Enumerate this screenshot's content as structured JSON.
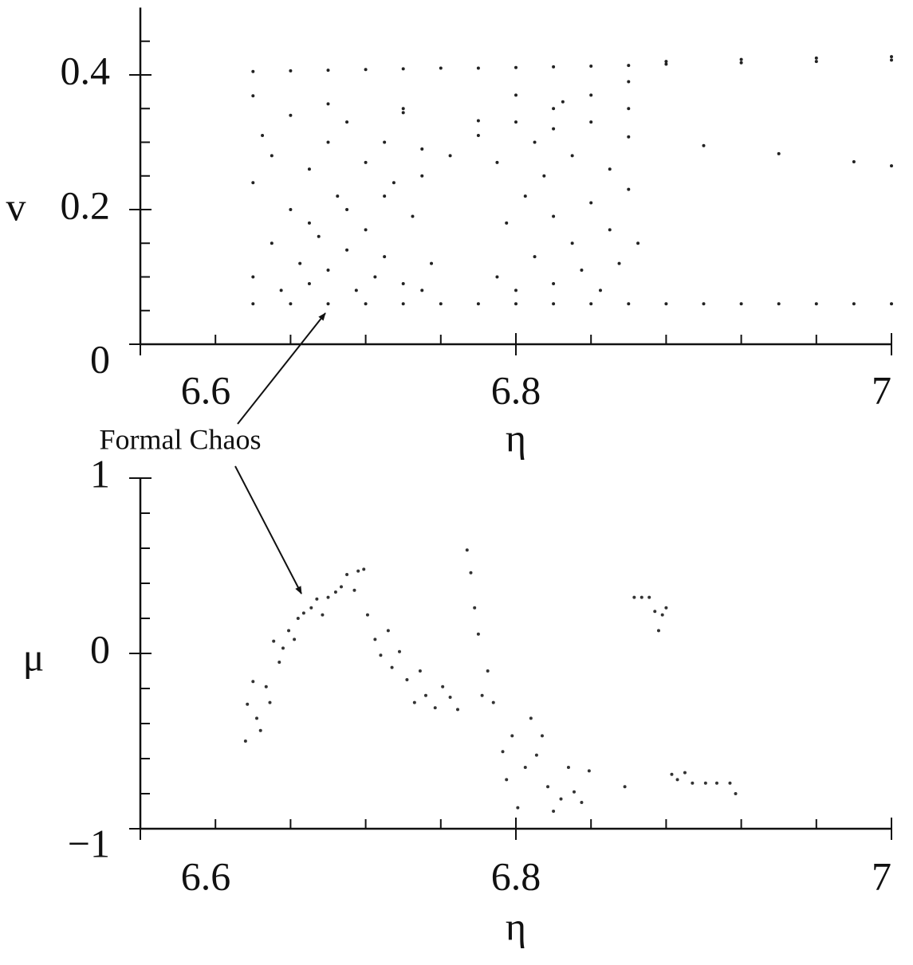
{
  "chart_data": [
    {
      "type": "scatter",
      "y_label": "v",
      "x_label": "η",
      "annotation": "Formal Chaos",
      "color": "#222222",
      "xlim": [
        6.6,
        7
      ],
      "xticks": [
        6.6,
        6.8,
        7
      ],
      "xminorticks": [
        6.64,
        6.68,
        6.72,
        6.76,
        6.84,
        6.88,
        6.92,
        6.96
      ],
      "ylim": [
        0,
        0.5
      ],
      "yticks": [
        0,
        0.2,
        0.4
      ],
      "yminorticks": [
        0.05,
        0.1,
        0.15,
        0.25,
        0.3,
        0.35,
        0.45
      ],
      "x": [
        6.66,
        6.68,
        6.7,
        6.72,
        6.74,
        6.76,
        6.78,
        6.8,
        6.82,
        6.84,
        6.86,
        6.88,
        6.9,
        6.92,
        6.94,
        6.96,
        6.98,
        7,
        6.66,
        6.68,
        6.7,
        6.72,
        6.74,
        6.76,
        6.78,
        6.8,
        6.82,
        6.84,
        6.86,
        6.88,
        6.92,
        6.96,
        7,
        6.88,
        6.92,
        6.96,
        7,
        6.66,
        6.7,
        6.74,
        6.78,
        6.82,
        6.86,
        6.9,
        6.94,
        6.98,
        7,
        6.69,
        6.71,
        6.73,
        6.75,
        6.765,
        6.78,
        6.8,
        6.82,
        6.84,
        6.86,
        6.66,
        6.66,
        6.665,
        6.67,
        6.67,
        6.675,
        6.68,
        6.68,
        6.685,
        6.69,
        6.69,
        6.695,
        6.7,
        6.7,
        6.705,
        6.71,
        6.71,
        6.715,
        6.72,
        6.72,
        6.725,
        6.73,
        6.73,
        6.735,
        6.74,
        6.74,
        6.745,
        6.75,
        6.75,
        6.755,
        6.79,
        6.79,
        6.795,
        6.8,
        6.8,
        6.805,
        6.81,
        6.81,
        6.815,
        6.82,
        6.82,
        6.825,
        6.83,
        6.83,
        6.835,
        6.84,
        6.84,
        6.845,
        6.85,
        6.85,
        6.855,
        6.86,
        6.86,
        6.865
      ],
      "values": [
        0.06,
        0.06,
        0.06,
        0.06,
        0.06,
        0.06,
        0.06,
        0.06,
        0.06,
        0.06,
        0.06,
        0.06,
        0.06,
        0.06,
        0.06,
        0.06,
        0.06,
        0.06,
        0.405,
        0.406,
        0.407,
        0.408,
        0.409,
        0.41,
        0.41,
        0.411,
        0.412,
        0.413,
        0.414,
        0.416,
        0.418,
        0.42,
        0.422,
        0.42,
        0.423,
        0.425,
        0.427,
        0.369,
        0.357,
        0.344,
        0.332,
        0.32,
        0.308,
        0.295,
        0.283,
        0.271,
        0.265,
        0.18,
        0.2,
        0.22,
        0.25,
        0.28,
        0.31,
        0.33,
        0.35,
        0.37,
        0.39,
        0.1,
        0.24,
        0.31,
        0.15,
        0.28,
        0.08,
        0.2,
        0.34,
        0.12,
        0.26,
        0.09,
        0.16,
        0.3,
        0.11,
        0.22,
        0.14,
        0.33,
        0.08,
        0.27,
        0.17,
        0.1,
        0.3,
        0.13,
        0.24,
        0.09,
        0.35,
        0.19,
        0.08,
        0.29,
        0.12,
        0.1,
        0.27,
        0.18,
        0.37,
        0.08,
        0.22,
        0.13,
        0.3,
        0.25,
        0.09,
        0.19,
        0.36,
        0.15,
        0.28,
        0.11,
        0.21,
        0.33,
        0.08,
        0.17,
        0.26,
        0.12,
        0.23,
        0.35,
        0.15
      ]
    },
    {
      "type": "scatter",
      "y_label": "μ",
      "x_label": "η",
      "color": "#333333",
      "xlim": [
        6.6,
        7
      ],
      "xticks": [
        6.6,
        6.8,
        7
      ],
      "xminorticks": [
        6.64,
        6.68,
        6.72,
        6.76,
        6.84,
        6.88,
        6.92,
        6.96
      ],
      "ylim": [
        -1,
        1
      ],
      "yticks": [
        {
          "value": -1,
          "label": "−1"
        },
        0,
        1
      ],
      "yminorticks": [
        -0.8,
        -0.6,
        -0.4,
        -0.2,
        0.2,
        0.4,
        0.6,
        0.8
      ],
      "x": [
        6.656,
        6.657,
        6.66,
        6.662,
        6.664,
        6.667,
        6.669,
        6.671,
        6.674,
        6.676,
        6.679,
        6.682,
        6.684,
        6.687,
        6.691,
        6.694,
        6.697,
        6.7,
        6.704,
        6.707,
        6.71,
        6.714,
        6.716,
        6.719,
        6.721,
        6.725,
        6.728,
        6.732,
        6.734,
        6.738,
        6.742,
        6.746,
        6.749,
        6.752,
        6.757,
        6.761,
        6.765,
        6.769,
        6.774,
        6.776,
        6.778,
        6.78,
        6.782,
        6.785,
        6.788,
        6.793,
        6.795,
        6.798,
        6.801,
        6.805,
        6.808,
        6.811,
        6.814,
        6.817,
        6.82,
        6.824,
        6.828,
        6.831,
        6.835,
        6.839,
        6.858,
        6.863,
        6.867,
        6.871,
        6.874,
        6.876,
        6.878,
        6.88,
        6.883,
        6.886,
        6.89,
        6.894,
        6.901,
        6.907,
        6.914,
        6.917
      ],
      "values": [
        -0.5,
        -0.29,
        -0.16,
        -0.37,
        -0.44,
        -0.19,
        -0.28,
        0.07,
        -0.05,
        0.03,
        0.13,
        0.08,
        0.2,
        0.23,
        0.26,
        0.31,
        0.22,
        0.32,
        0.35,
        0.38,
        0.45,
        0.36,
        0.47,
        0.48,
        0.22,
        0.08,
        -0.01,
        0.13,
        -0.08,
        0.01,
        -0.15,
        -0.28,
        -0.1,
        -0.24,
        -0.31,
        -0.19,
        -0.25,
        -0.32,
        0.59,
        0.46,
        0.26,
        0.11,
        -0.24,
        -0.1,
        -0.28,
        -0.56,
        -0.72,
        -0.47,
        -0.88,
        -0.65,
        -0.37,
        -0.58,
        -0.47,
        -0.76,
        -0.9,
        -0.83,
        -0.65,
        -0.79,
        -0.85,
        -0.67,
        -0.76,
        0.32,
        0.32,
        0.32,
        0.24,
        0.13,
        0.22,
        0.26,
        -0.69,
        -0.72,
        -0.68,
        -0.74,
        -0.74,
        -0.74,
        -0.74,
        -0.8
      ]
    }
  ]
}
